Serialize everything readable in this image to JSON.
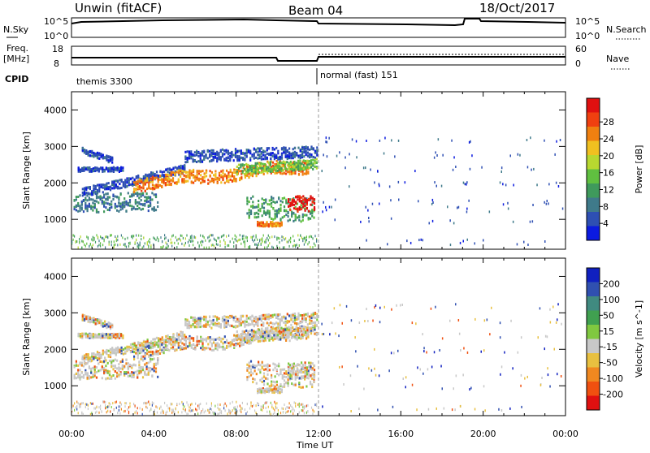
{
  "header": {
    "station": "Unwin (fitACF)",
    "beam": "Beam 04",
    "date": "18/Oct/2017"
  },
  "strips": {
    "nsky_label": "N.Sky",
    "nsky_ticks": [
      "10^5",
      "10^0"
    ],
    "nsearch_label": "N.Search",
    "nsearch_ticks": [
      "10^5",
      "10^0"
    ],
    "freq_label_1": "Freq.",
    "freq_label_2": "[MHz]",
    "freq_ticks": [
      "18",
      "8"
    ],
    "nave_label": "Nave",
    "nave_ticks": [
      "60",
      "0"
    ],
    "cpid_label": "CPID",
    "cpid_segments": [
      {
        "label": "themis 3300",
        "start_hour": 0,
        "end_hour": 12
      },
      {
        "label": "normal (fast) 151",
        "start_hour": 12,
        "end_hour": 24
      }
    ]
  },
  "chart_data": [
    {
      "type": "heatmap",
      "quantity": "Power",
      "ylabel": "Slant Range [km]",
      "xlabel": "Time UT",
      "ylim": [
        180,
        4500
      ],
      "xlim_hours": [
        0,
        24
      ],
      "yticks": [
        "1000",
        "2000",
        "3000",
        "4000"
      ],
      "colorbar": {
        "label": "Power [dB]",
        "ticks": [
          "4",
          "8",
          "12",
          "16",
          "20",
          "24",
          "28"
        ],
        "colors": [
          "#0b1ae0",
          "#2e4fb3",
          "#3f7a8a",
          "#3f9a5c",
          "#60c040",
          "#b8d830",
          "#f0c020",
          "#f08010",
          "#f04010",
          "#e01010"
        ]
      }
    },
    {
      "type": "heatmap",
      "quantity": "Velocity",
      "ylabel": "Slant Range [km]",
      "xlabel": "Time UT",
      "ylim": [
        180,
        4500
      ],
      "xlim_hours": [
        0,
        24
      ],
      "yticks": [
        "1000",
        "2000",
        "3000",
        "4000"
      ],
      "colorbar": {
        "label": "Velocity [m s^-1]",
        "ticks": [
          "200",
          "100",
          "50",
          "15",
          "-15",
          "-50",
          "-100",
          "-200"
        ],
        "colors": [
          "#1020c0",
          "#3050b0",
          "#408a80",
          "#40a050",
          "#80c840",
          "#c8c8c8",
          "#e8c040",
          "#f08820",
          "#f05010",
          "#e01010"
        ]
      }
    }
  ],
  "xaxis": {
    "ticks": [
      "00:00",
      "04:00",
      "08:00",
      "12:00",
      "16:00",
      "20:00",
      "00:00"
    ],
    "label": "Time UT"
  }
}
